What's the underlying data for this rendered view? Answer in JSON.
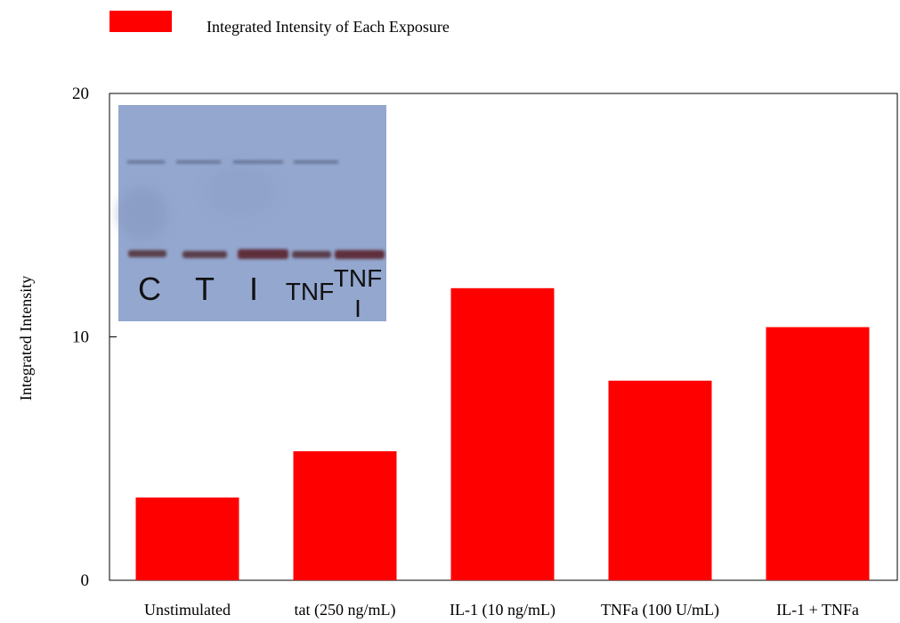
{
  "chart_data": {
    "type": "bar",
    "categories": [
      "Unstimulated",
      "tat (250 ng/mL)",
      "IL-1 (10 ng/mL)",
      "TNFa (100 U/mL)",
      "IL-1 + TNFa"
    ],
    "series": [
      {
        "name": "Integrated Intensity of Each Exposure",
        "values": [
          3.4,
          5.3,
          12.0,
          8.2,
          10.4
        ]
      }
    ],
    "ylabel": "Integrated Intensity",
    "xlabel": "",
    "ylim": [
      0,
      20
    ],
    "yticks": [
      0,
      10,
      20
    ],
    "grid": false,
    "legend": "top-left",
    "bar_color": "#ff0000"
  },
  "inset": {
    "lane_labels": [
      "C",
      "T",
      "I",
      "TNF"
    ],
    "combined_label_top": "TNF",
    "combined_label_bottom": "I",
    "background_color": "#93a7cf"
  }
}
